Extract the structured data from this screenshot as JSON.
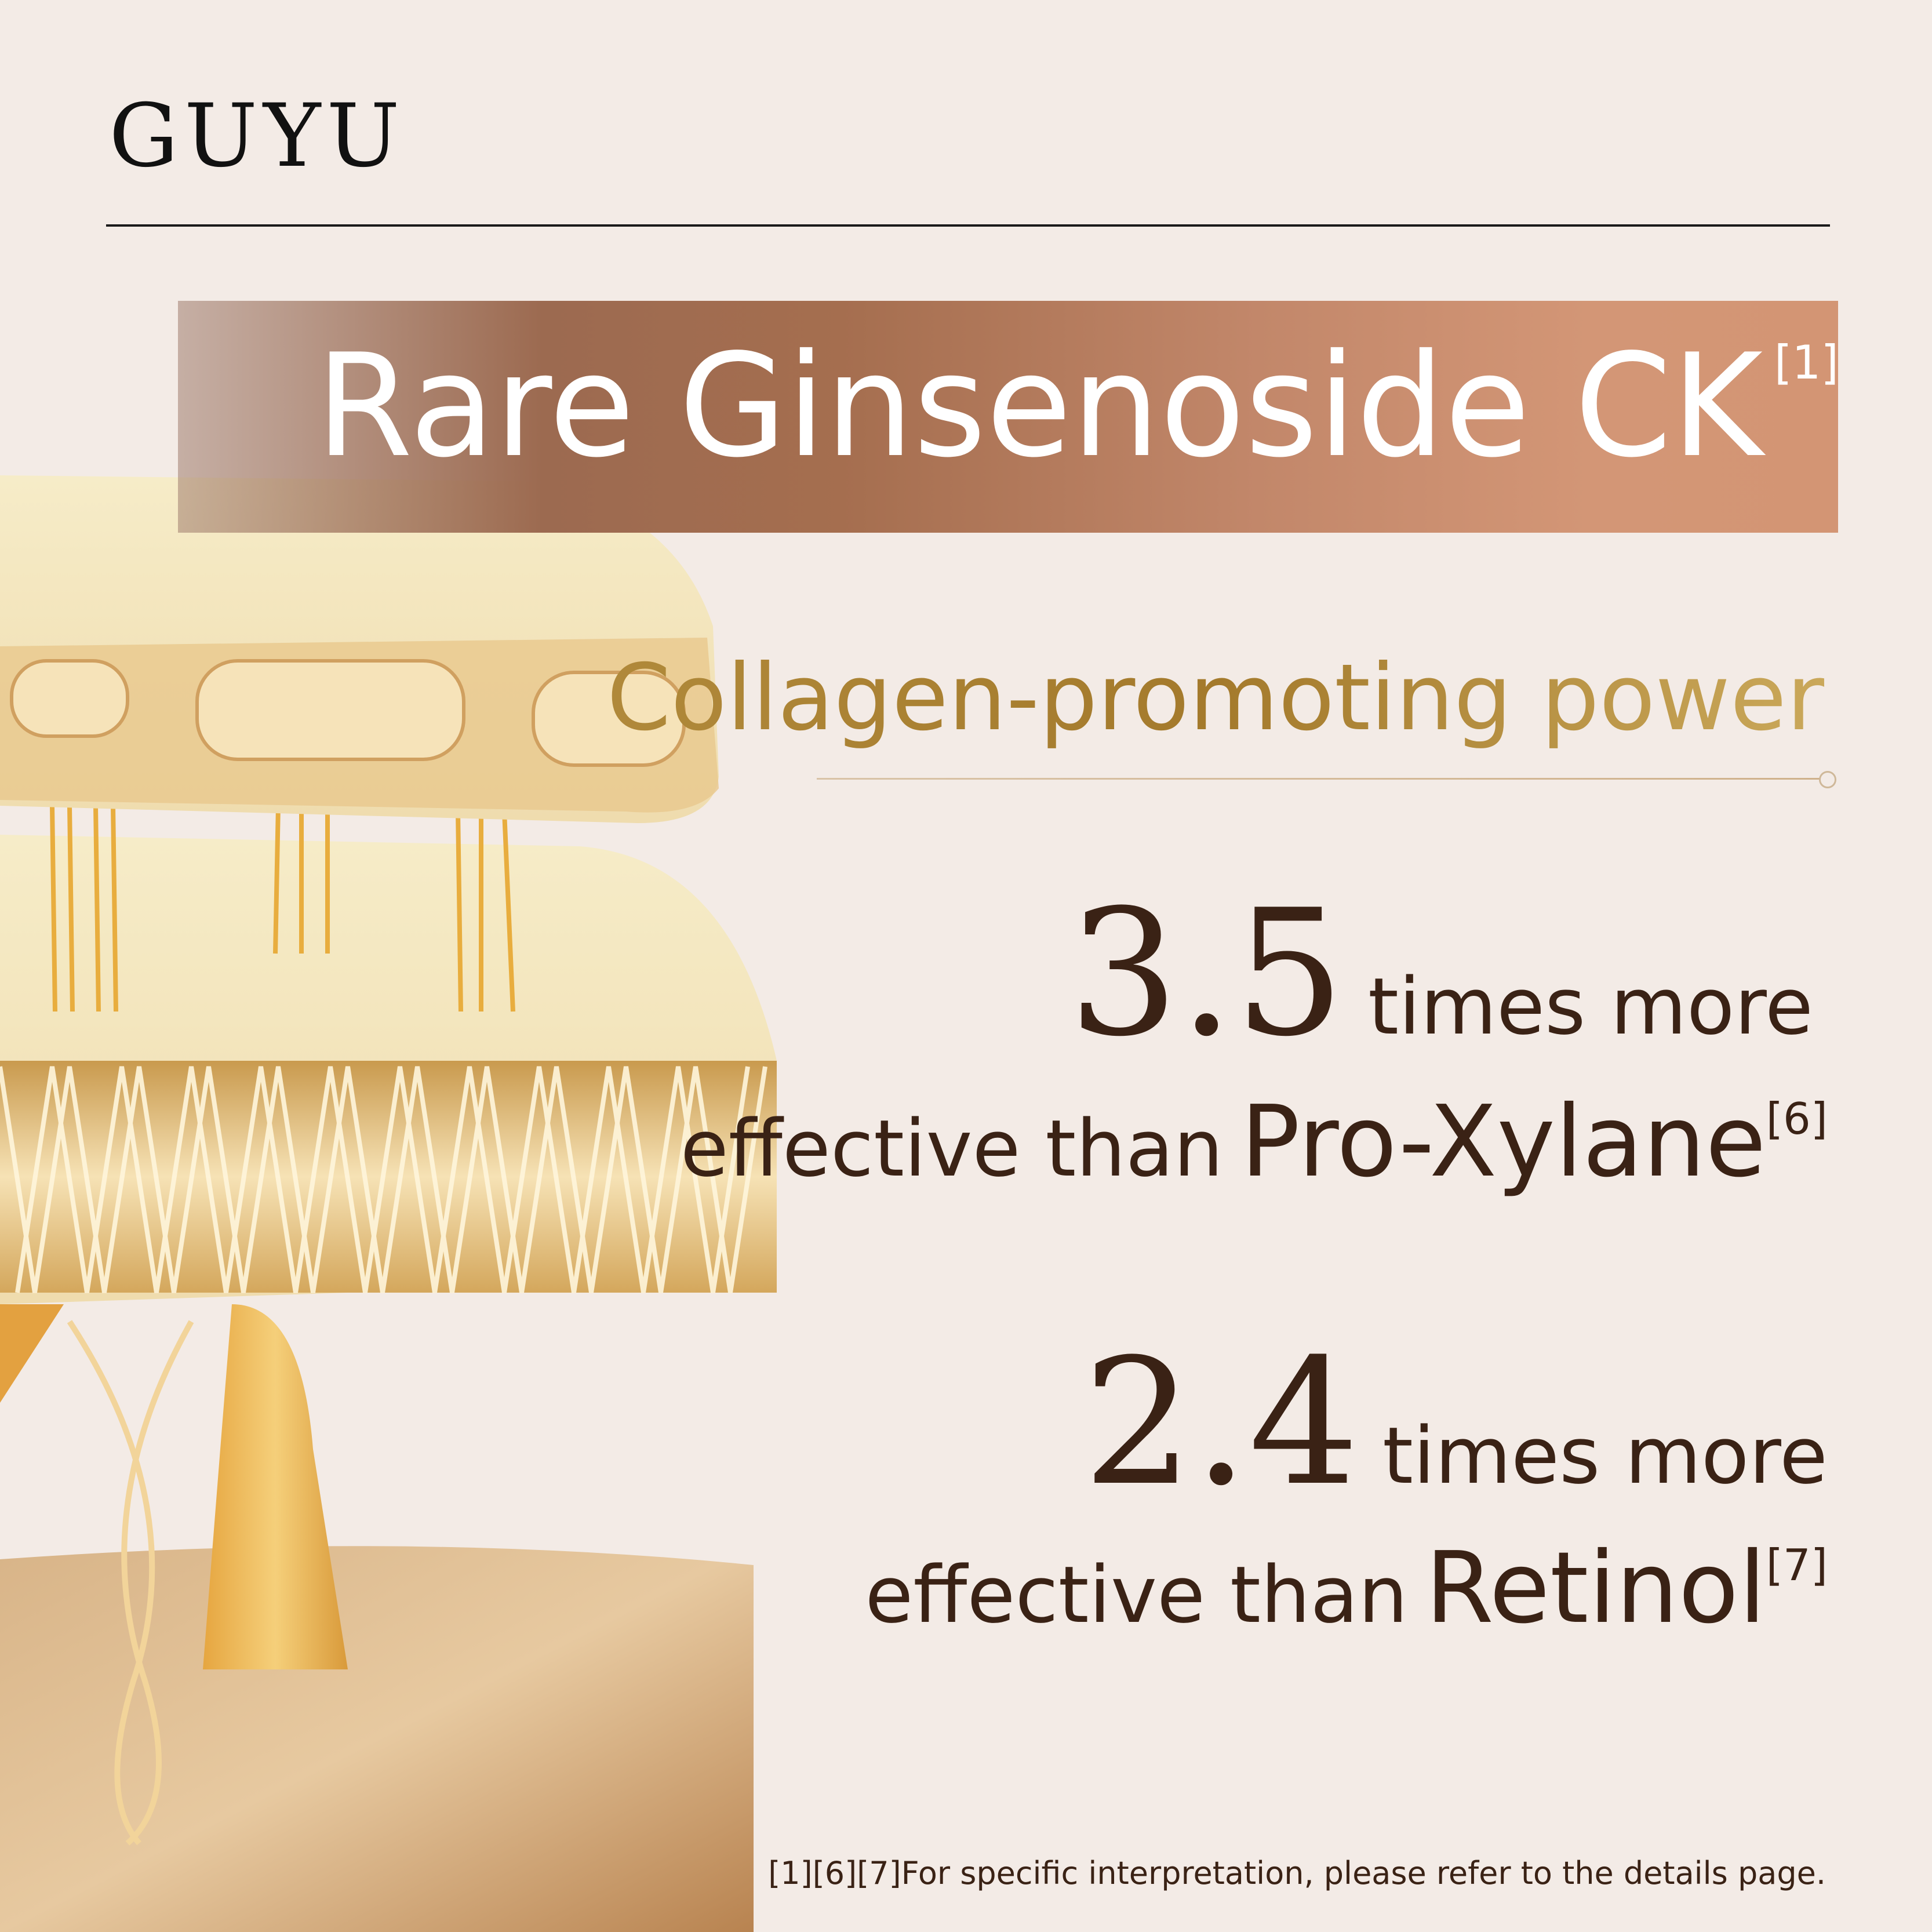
{
  "brand": {
    "logo_text": "GUYU"
  },
  "banner": {
    "title": "Rare Ginsenoside CK",
    "footnote_ref": "[1]"
  },
  "subtitle": "Collagen-promoting power",
  "stats": [
    {
      "value": "3.5",
      "multiplier_text": "times more",
      "comparison_prefix": "effective than",
      "comparison_name": "Pro-Xylane",
      "footnote_ref": "[6]"
    },
    {
      "value": "2.4",
      "multiplier_text": "times more",
      "comparison_prefix": "effective than",
      "comparison_name": "Retinol",
      "footnote_ref": "[7]"
    }
  ],
  "footnote": "[1][6][7]For specific interpretation, please refer to the details page.",
  "colors": {
    "background": "#f3ebe6",
    "banner": "#a56e4f",
    "accent_gold": "#b0893a",
    "text": "#3a2215"
  }
}
